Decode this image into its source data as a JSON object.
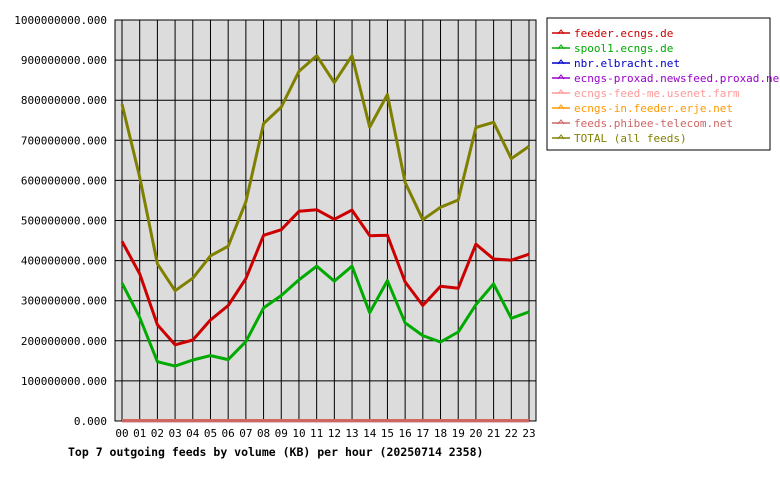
{
  "chart_data": {
    "type": "line",
    "title": "Top 7 outgoing feeds by volume (KB) per hour (20250714 2358)",
    "xlabel": "",
    "ylabel": "",
    "x": [
      "00",
      "01",
      "02",
      "03",
      "04",
      "05",
      "06",
      "07",
      "08",
      "09",
      "10",
      "11",
      "12",
      "13",
      "14",
      "15",
      "16",
      "17",
      "18",
      "19",
      "20",
      "21",
      "22",
      "23"
    ],
    "ylim": [
      0,
      1000000000
    ],
    "yticks": [
      "0.000",
      "100000000.000",
      "200000000.000",
      "300000000.000",
      "400000000.000",
      "500000000.000",
      "600000000.000",
      "700000000.000",
      "800000000.000",
      "900000000.000",
      "1000000000.000"
    ],
    "grid": true,
    "legend_position": "right",
    "series": [
      {
        "name": "feeder.ecngs.de",
        "color": "#cc0000",
        "values": [
          448000000,
          367000000,
          240000000,
          190000000,
          202000000,
          252000000,
          288000000,
          355000000,
          463000000,
          477000000,
          523000000,
          527000000,
          503000000,
          526000000,
          462000000,
          463000000,
          347000000,
          288000000,
          336000000,
          331000000,
          441000000,
          404000000,
          401000000,
          416000000
        ]
      },
      {
        "name": "spool1.ecngs.de",
        "color": "#00aa00",
        "values": [
          344000000,
          258000000,
          148000000,
          137000000,
          152000000,
          163000000,
          153000000,
          198000000,
          282000000,
          313000000,
          352000000,
          386000000,
          349000000,
          386000000,
          270000000,
          350000000,
          245000000,
          213000000,
          197000000,
          222000000,
          290000000,
          342000000,
          256000000,
          272000000
        ]
      },
      {
        "name": "nbr.elbracht.net",
        "color": "#0000cc",
        "values": [
          1000000,
          1000000,
          1000000,
          1000000,
          1000000,
          1000000,
          1000000,
          1000000,
          1000000,
          1000000,
          1000000,
          1000000,
          1000000,
          1000000,
          1000000,
          1000000,
          1000000,
          1000000,
          1000000,
          1000000,
          1000000,
          1000000,
          1000000,
          1000000
        ]
      },
      {
        "name": "ecngs-proxad.newsfeed.proxad.net",
        "color": "#9900cc",
        "values": [
          1000000,
          1000000,
          1000000,
          1000000,
          1000000,
          1000000,
          1000000,
          1000000,
          1000000,
          1000000,
          1000000,
          1000000,
          1000000,
          1000000,
          1000000,
          1000000,
          1000000,
          1000000,
          1000000,
          1000000,
          1000000,
          1000000,
          1000000,
          1000000
        ]
      },
      {
        "name": "ecngs-feed-me.usenet.farm",
        "color": "#ff9999",
        "values": [
          1000000,
          1000000,
          1000000,
          1000000,
          1000000,
          1000000,
          1000000,
          1000000,
          1000000,
          1000000,
          1000000,
          1000000,
          1000000,
          1000000,
          1000000,
          1000000,
          1000000,
          1000000,
          1000000,
          1000000,
          1000000,
          1000000,
          1000000,
          1000000
        ]
      },
      {
        "name": "ecngs-in.feeder.erje.net",
        "color": "#ff9900",
        "values": [
          1000000,
          1000000,
          1000000,
          1000000,
          1000000,
          1000000,
          1000000,
          1000000,
          1000000,
          1000000,
          1000000,
          1000000,
          1000000,
          1000000,
          1000000,
          1000000,
          1000000,
          1000000,
          1000000,
          1000000,
          1000000,
          1000000,
          1000000,
          1000000
        ]
      },
      {
        "name": "feeds.phibee-telecom.net",
        "color": "#cc6666",
        "values": [
          1000000,
          1000000,
          1000000,
          1000000,
          1000000,
          1000000,
          1000000,
          1000000,
          1000000,
          1000000,
          1000000,
          1000000,
          1000000,
          1000000,
          1000000,
          1000000,
          1000000,
          1000000,
          1000000,
          1000000,
          1000000,
          1000000,
          1000000,
          1000000
        ]
      },
      {
        "name": "TOTAL (all feeds)",
        "color": "#808000",
        "values": [
          790000000,
          608000000,
          392000000,
          325000000,
          356000000,
          412000000,
          436000000,
          547000000,
          742000000,
          783000000,
          872000000,
          911000000,
          844000000,
          911000000,
          733000000,
          814000000,
          595000000,
          502000000,
          533000000,
          551000000,
          732000000,
          745000000,
          654000000,
          685000000
        ]
      }
    ]
  }
}
